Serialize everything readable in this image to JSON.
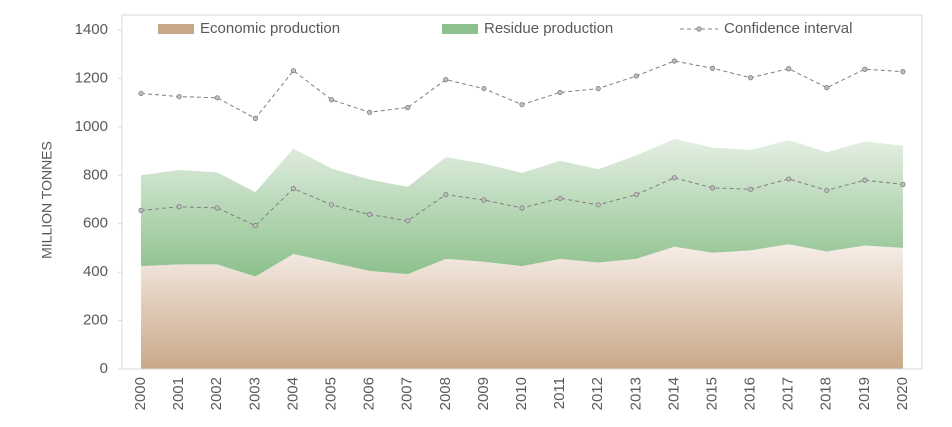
{
  "chart_data": {
    "type": "stacked-area",
    "y_axis_label": "MILLION TONNES",
    "categories": [
      "2000",
      "2001",
      "2002",
      "2003",
      "2004",
      "2005",
      "2006",
      "2007",
      "2008",
      "2009",
      "2010",
      "2011",
      "2012",
      "2013",
      "2014",
      "2015",
      "2016",
      "2017",
      "2018",
      "2019",
      "2020"
    ],
    "series": [
      {
        "name": "Economic production",
        "color": "#c9a889",
        "values": [
          425,
          432,
          432,
          382,
          475,
          440,
          405,
          392,
          455,
          443,
          425,
          455,
          440,
          455,
          505,
          480,
          490,
          515,
          485,
          510,
          500
        ]
      },
      {
        "name": "Residue production",
        "color": "#8cc08c",
        "values": [
          375,
          390,
          380,
          348,
          435,
          388,
          377,
          360,
          420,
          405,
          385,
          405,
          385,
          427,
          445,
          435,
          415,
          430,
          410,
          430,
          422
        ]
      }
    ],
    "interval": {
      "name": "Confidence interval",
      "color": "#7f7f7f",
      "lower": [
        655,
        670,
        665,
        592,
        745,
        678,
        638,
        612,
        720,
        698,
        665,
        705,
        678,
        720,
        790,
        748,
        742,
        785,
        738,
        780,
        762
      ],
      "upper": [
        1138,
        1125,
        1120,
        1035,
        1232,
        1112,
        1060,
        1080,
        1195,
        1158,
        1092,
        1142,
        1158,
        1210,
        1272,
        1242,
        1203,
        1240,
        1162,
        1238,
        1228
      ]
    },
    "ylim": [
      0,
      1400
    ],
    "yticks": [
      0,
      200,
      400,
      600,
      800,
      1000,
      1200,
      1400
    ]
  }
}
